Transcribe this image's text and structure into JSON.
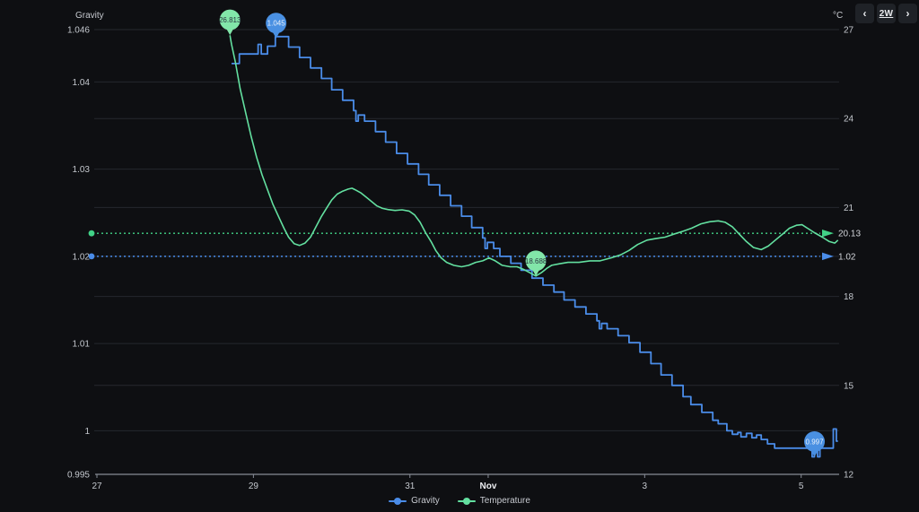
{
  "header": {
    "left_axis_title": "Gravity",
    "right_axis_title": "°C",
    "prev_button": "‹",
    "range_button": "2W",
    "next_button": "›"
  },
  "legend": [
    {
      "label": "Gravity",
      "color": "#4a8ce8"
    },
    {
      "label": "Temperature",
      "color": "#63e0a0"
    }
  ],
  "colors": {
    "background": "#0e0f12",
    "gridline": "#26282e",
    "axis_line": "#878c96",
    "tick_text": "#c4c8ce",
    "bold_tick_text": "#eceef1",
    "ref_label_text": "#d2d5da"
  },
  "chart_data": {
    "type": "line",
    "title": "",
    "x_unit": "days since Oct 27",
    "x_range": [
      0,
      9.485
    ],
    "x_ticks": [
      {
        "day": 0,
        "label": "27"
      },
      {
        "day": 2,
        "label": "29"
      },
      {
        "day": 4,
        "label": "31"
      },
      {
        "day": 5,
        "label": "Nov",
        "bold": true
      },
      {
        "day": 7,
        "label": "3"
      },
      {
        "day": 9,
        "label": "5"
      }
    ],
    "left_axis": {
      "title": "Gravity",
      "range": [
        0.995,
        1.046
      ],
      "ticks": [
        {
          "value": 1.046,
          "label": "1.046"
        },
        {
          "value": 1.04,
          "label": "1.04"
        },
        {
          "value": 1.03,
          "label": "1.03"
        },
        {
          "value": 1.02,
          "label": "1.02"
        },
        {
          "value": 1.01,
          "label": "1.01"
        },
        {
          "value": 1.0,
          "label": "1"
        },
        {
          "value": 0.995,
          "label": "0.995"
        }
      ]
    },
    "right_axis": {
      "title": "°C",
      "range": [
        12,
        27
      ],
      "ticks": [
        {
          "value": 27,
          "label": "27"
        },
        {
          "value": 24,
          "label": "24"
        },
        {
          "value": 21,
          "label": "21"
        },
        {
          "value": 18,
          "label": "18"
        },
        {
          "value": 15,
          "label": "15"
        },
        {
          "value": 12,
          "label": "12"
        }
      ]
    },
    "series": [
      {
        "name": "Gravity",
        "axis": "left",
        "style": "step",
        "color": "#4a8ce8",
        "marker_fill": "#4a90e2",
        "marker_text_color": "#e8f1fc",
        "points": [
          [
            1.72,
            1.0421
          ],
          [
            1.82,
            1.0432
          ],
          [
            2.06,
            1.0443
          ],
          [
            2.1,
            1.0432
          ],
          [
            2.18,
            1.0441
          ],
          [
            2.28,
            1.0452
          ],
          [
            2.43,
            1.0452
          ],
          [
            2.45,
            1.044
          ],
          [
            2.59,
            1.0428
          ],
          [
            2.73,
            1.0416
          ],
          [
            2.87,
            1.0404
          ],
          [
            3.0,
            1.0391
          ],
          [
            3.14,
            1.0379
          ],
          [
            3.28,
            1.0367
          ],
          [
            3.31,
            1.0355
          ],
          [
            3.34,
            1.0362
          ],
          [
            3.42,
            1.0355
          ],
          [
            3.56,
            1.0343
          ],
          [
            3.69,
            1.0331
          ],
          [
            3.83,
            1.0318
          ],
          [
            3.97,
            1.0306
          ],
          [
            4.11,
            1.0294
          ],
          [
            4.24,
            1.0282
          ],
          [
            4.38,
            1.027
          ],
          [
            4.52,
            1.0258
          ],
          [
            4.66,
            1.0246
          ],
          [
            4.79,
            1.0233
          ],
          [
            4.93,
            1.0221
          ],
          [
            4.96,
            1.0209
          ],
          [
            4.99,
            1.0216
          ],
          [
            5.07,
            1.0209
          ],
          [
            5.15,
            1.02
          ],
          [
            5.29,
            1.0192
          ],
          [
            5.42,
            1.0184
          ],
          [
            5.56,
            1.0175
          ],
          [
            5.7,
            1.0167
          ],
          [
            5.84,
            1.0159
          ],
          [
            5.97,
            1.015
          ],
          [
            6.11,
            1.0142
          ],
          [
            6.25,
            1.0134
          ],
          [
            6.39,
            1.0126
          ],
          [
            6.42,
            1.0117
          ],
          [
            6.45,
            1.0123
          ],
          [
            6.52,
            1.0117
          ],
          [
            6.66,
            1.0109
          ],
          [
            6.8,
            1.0101
          ],
          [
            6.94,
            1.009
          ],
          [
            7.08,
            1.0077
          ],
          [
            7.21,
            1.0064
          ],
          [
            7.35,
            1.0052
          ],
          [
            7.49,
            1.0039
          ],
          [
            7.59,
            1.003
          ],
          [
            7.73,
            1.0021
          ],
          [
            7.87,
            1.0012
          ],
          [
            7.94,
            1.0008
          ],
          [
            8.05,
            1.0
          ],
          [
            8.12,
            0.9996
          ],
          [
            8.19,
            0.9998
          ],
          [
            8.23,
            0.9993
          ],
          [
            8.3,
            0.9997
          ],
          [
            8.37,
            0.9992
          ],
          [
            8.43,
            0.9995
          ],
          [
            8.49,
            0.999
          ],
          [
            8.57,
            0.9985
          ],
          [
            8.66,
            0.998
          ],
          [
            9.08,
            0.998
          ],
          [
            9.14,
            0.997
          ],
          [
            9.17,
            0.998
          ],
          [
            9.21,
            0.997
          ],
          [
            9.24,
            0.998
          ],
          [
            9.4,
            0.998
          ],
          [
            9.41,
            1.0002
          ],
          [
            9.45,
            0.9988
          ],
          [
            9.47,
            0.9988
          ]
        ]
      },
      {
        "name": "Temperature",
        "axis": "right",
        "style": "line",
        "color": "#63e0a0",
        "marker_fill": "#82e6a9",
        "marker_text_color": "#2a3440",
        "points": [
          [
            1.7,
            26.81
          ],
          [
            1.72,
            26.5
          ],
          [
            1.77,
            25.9
          ],
          [
            1.83,
            25.0
          ],
          [
            1.9,
            24.2
          ],
          [
            1.97,
            23.4
          ],
          [
            2.04,
            22.7
          ],
          [
            2.11,
            22.1
          ],
          [
            2.18,
            21.6
          ],
          [
            2.25,
            21.1
          ],
          [
            2.32,
            20.7
          ],
          [
            2.39,
            20.3
          ],
          [
            2.45,
            20.0
          ],
          [
            2.52,
            19.78
          ],
          [
            2.59,
            19.72
          ],
          [
            2.66,
            19.8
          ],
          [
            2.73,
            20.0
          ],
          [
            2.8,
            20.35
          ],
          [
            2.87,
            20.7
          ],
          [
            2.94,
            21.0
          ],
          [
            3.0,
            21.25
          ],
          [
            3.07,
            21.45
          ],
          [
            3.14,
            21.55
          ],
          [
            3.21,
            21.62
          ],
          [
            3.26,
            21.65
          ],
          [
            3.3,
            21.6
          ],
          [
            3.37,
            21.5
          ],
          [
            3.44,
            21.35
          ],
          [
            3.51,
            21.2
          ],
          [
            3.58,
            21.05
          ],
          [
            3.65,
            20.97
          ],
          [
            3.72,
            20.93
          ],
          [
            3.81,
            20.9
          ],
          [
            3.9,
            20.92
          ],
          [
            3.99,
            20.88
          ],
          [
            4.06,
            20.75
          ],
          [
            4.13,
            20.5
          ],
          [
            4.2,
            20.15
          ],
          [
            4.27,
            19.85
          ],
          [
            4.33,
            19.55
          ],
          [
            4.4,
            19.3
          ],
          [
            4.47,
            19.15
          ],
          [
            4.56,
            19.05
          ],
          [
            4.66,
            19.0
          ],
          [
            4.75,
            19.05
          ],
          [
            4.84,
            19.15
          ],
          [
            4.93,
            19.2
          ],
          [
            5.01,
            19.3
          ],
          [
            5.09,
            19.2
          ],
          [
            5.18,
            19.05
          ],
          [
            5.28,
            19.0
          ],
          [
            5.37,
            19.0
          ],
          [
            5.46,
            18.9
          ],
          [
            5.53,
            18.8
          ],
          [
            5.61,
            18.69
          ],
          [
            5.68,
            18.8
          ],
          [
            5.75,
            18.95
          ],
          [
            5.81,
            19.05
          ],
          [
            5.91,
            19.1
          ],
          [
            6.02,
            19.15
          ],
          [
            6.16,
            19.15
          ],
          [
            6.3,
            19.2
          ],
          [
            6.43,
            19.2
          ],
          [
            6.57,
            19.3
          ],
          [
            6.69,
            19.4
          ],
          [
            6.8,
            19.55
          ],
          [
            6.91,
            19.75
          ],
          [
            7.03,
            19.9
          ],
          [
            7.14,
            19.95
          ],
          [
            7.26,
            20.0
          ],
          [
            7.37,
            20.1
          ],
          [
            7.49,
            20.2
          ],
          [
            7.6,
            20.3
          ],
          [
            7.72,
            20.45
          ],
          [
            7.83,
            20.52
          ],
          [
            7.94,
            20.55
          ],
          [
            8.03,
            20.5
          ],
          [
            8.12,
            20.35
          ],
          [
            8.21,
            20.1
          ],
          [
            8.3,
            19.85
          ],
          [
            8.39,
            19.65
          ],
          [
            8.49,
            19.58
          ],
          [
            8.58,
            19.7
          ],
          [
            8.67,
            19.9
          ],
          [
            8.76,
            20.1
          ],
          [
            8.85,
            20.3
          ],
          [
            8.94,
            20.4
          ],
          [
            9.01,
            20.42
          ],
          [
            9.08,
            20.3
          ],
          [
            9.17,
            20.15
          ],
          [
            9.27,
            20.0
          ],
          [
            9.36,
            19.85
          ],
          [
            9.43,
            19.8
          ],
          [
            9.47,
            19.9
          ]
        ]
      }
    ],
    "reference_lines": [
      {
        "series": "Temperature",
        "value": 20.13,
        "label": "20.13",
        "color": "#41d287"
      },
      {
        "series": "Gravity",
        "value": 1.02,
        "label": "1.02",
        "color": "#4a8ce8"
      }
    ],
    "markers": [
      {
        "series": "Temperature",
        "day": 1.7,
        "value": 26.813,
        "label": "26.813"
      },
      {
        "series": "Gravity",
        "day": 2.29,
        "value": 1.045,
        "label": "1.045"
      },
      {
        "series": "Temperature",
        "day": 5.61,
        "value": 18.688,
        "label": "18.688"
      },
      {
        "series": "Gravity",
        "day": 9.17,
        "value": 0.997,
        "label": "0.997"
      }
    ]
  }
}
